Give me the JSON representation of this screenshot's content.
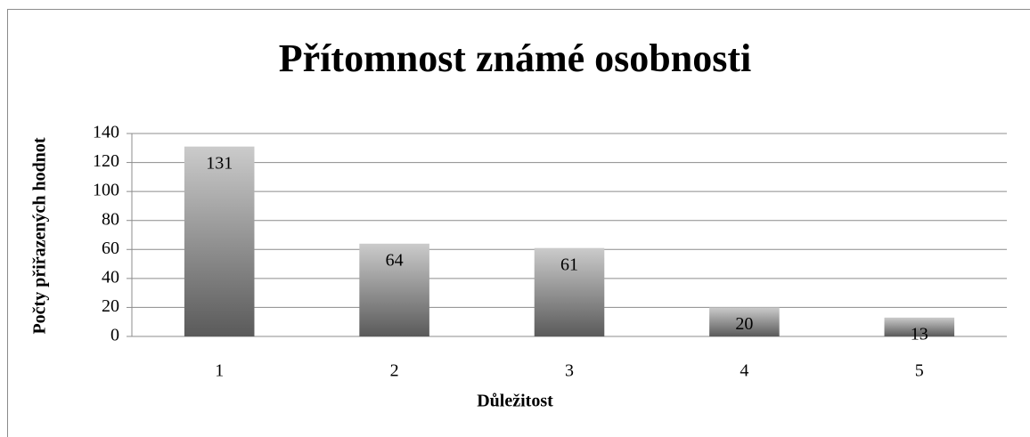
{
  "chart_data": {
    "type": "bar",
    "title": "Přítomnost známé osobnosti",
    "x_label": "Důležitost",
    "y_label": "Počty přiřazených hodnot",
    "categories": [
      "1",
      "2",
      "3",
      "4",
      "5"
    ],
    "values": [
      131,
      64,
      61,
      20,
      13
    ],
    "ylim": [
      0,
      140
    ],
    "yticks": [
      0,
      20,
      40,
      60,
      80,
      100,
      120,
      140
    ],
    "grid": true
  }
}
